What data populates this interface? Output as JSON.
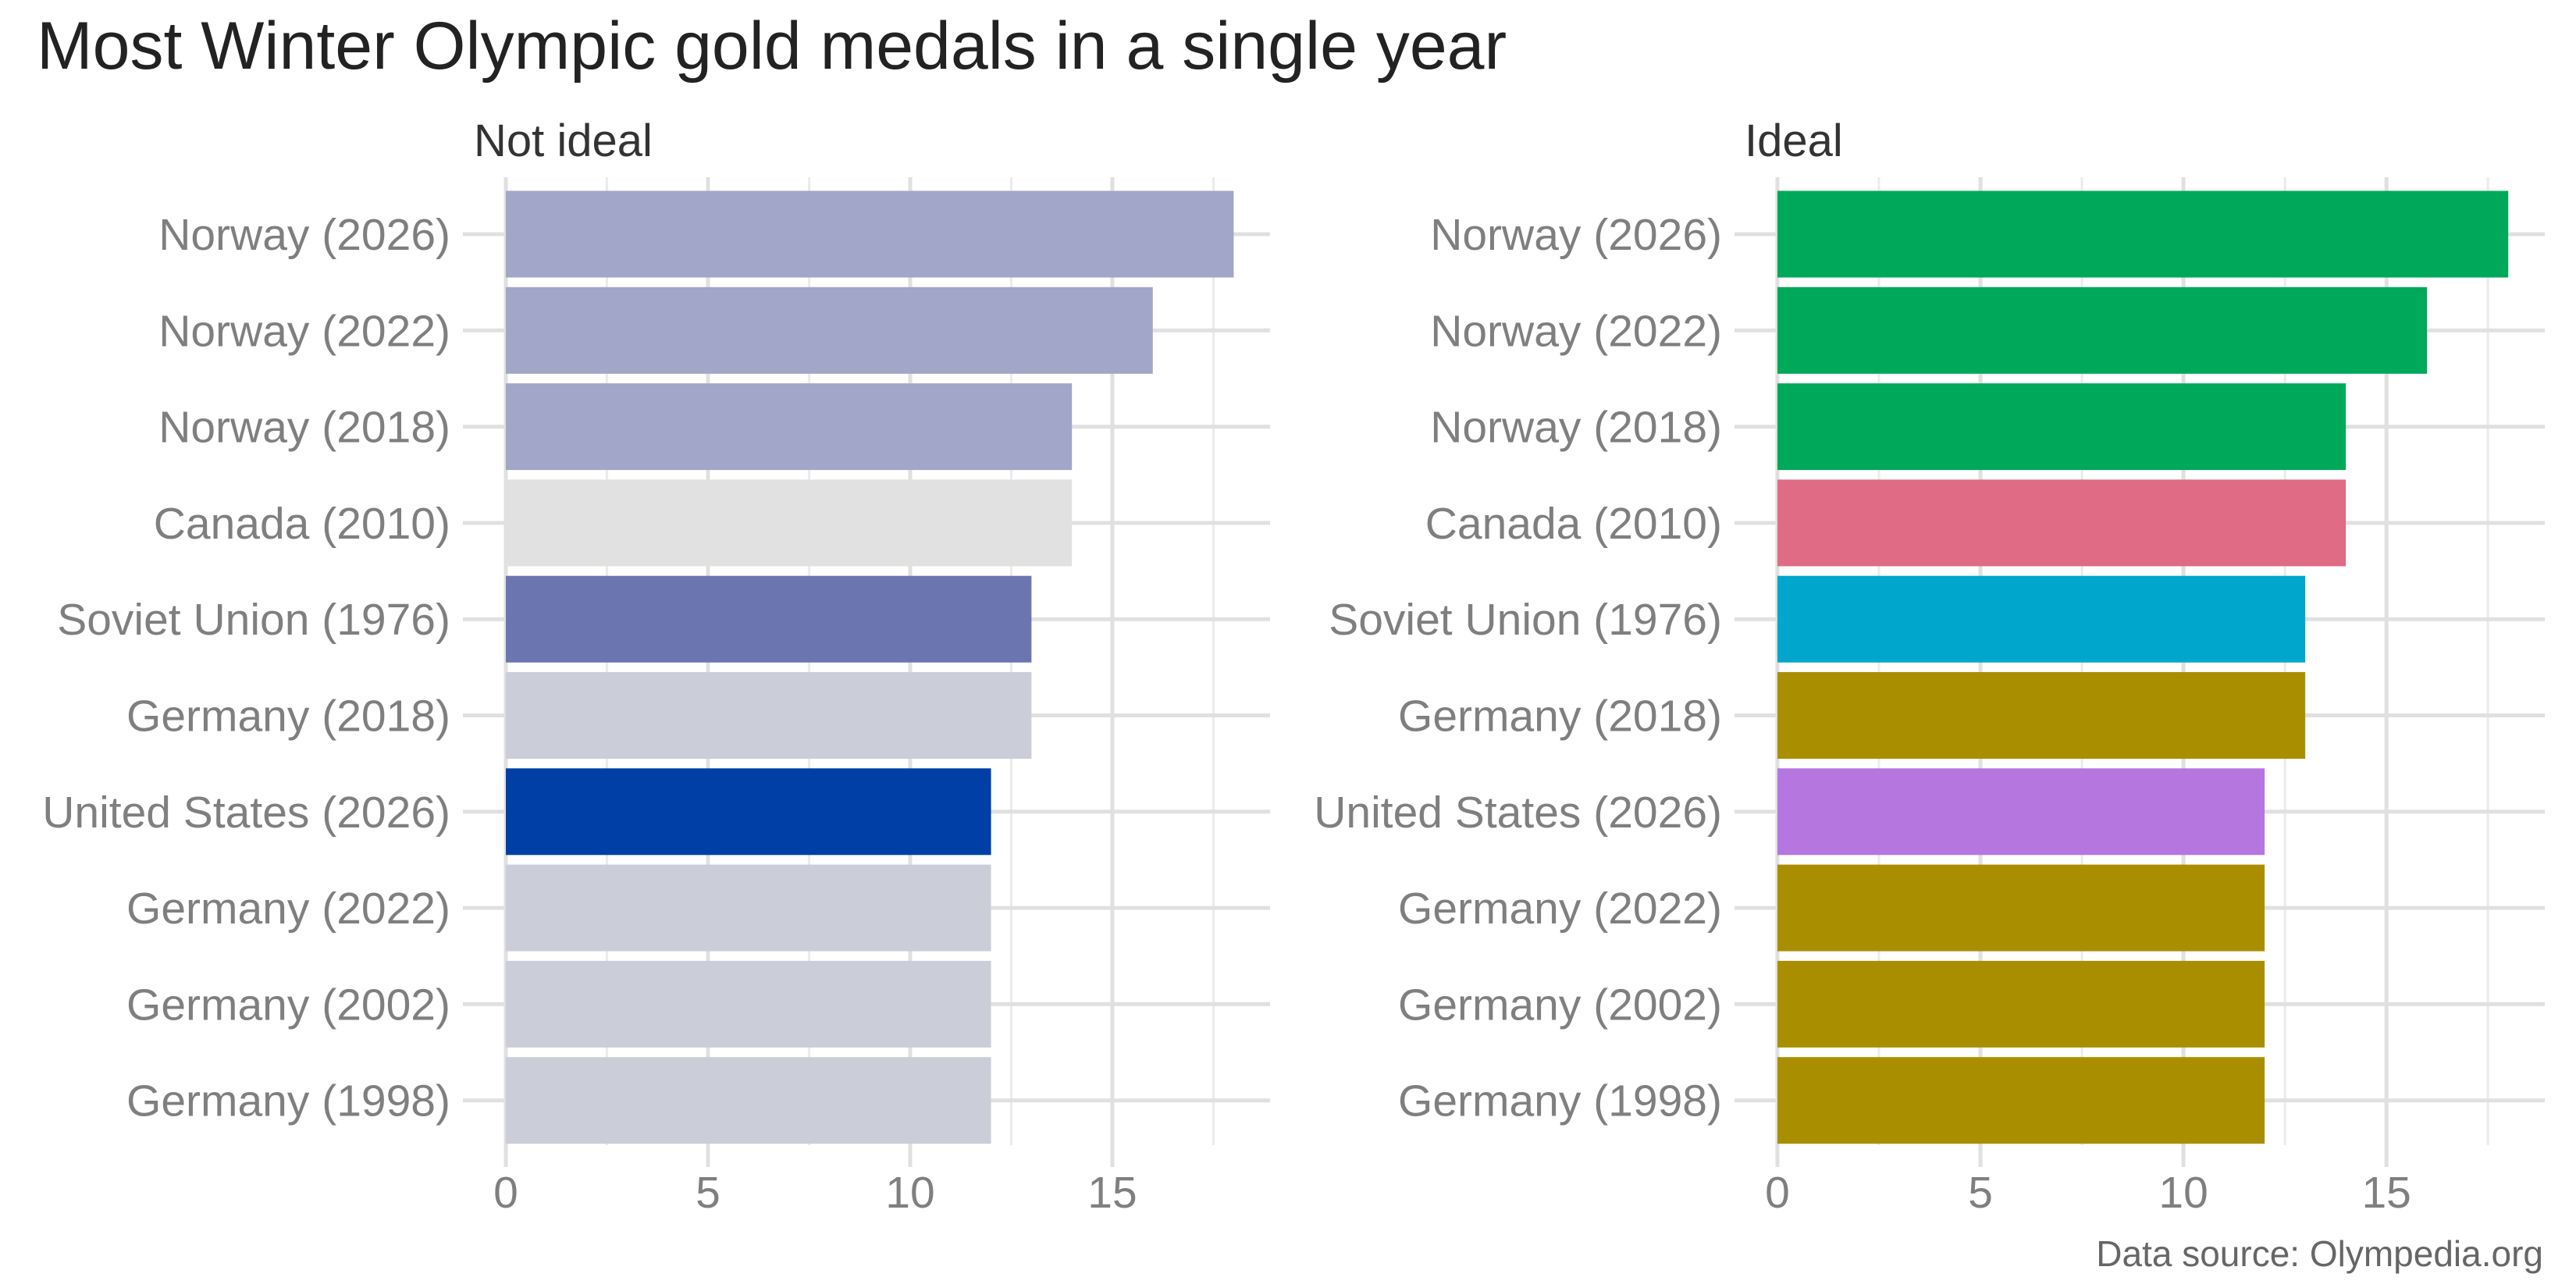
{
  "chart_data": {
    "type": "bar",
    "orientation": "horizontal",
    "title": "Most Winter Olympic gold medals in a single year",
    "caption": "Data source: Olympedia.org",
    "categories": [
      "Norway (2026)",
      "Norway (2022)",
      "Norway (2018)",
      "Canada (2010)",
      "Soviet Union (1976)",
      "Germany (2018)",
      "United States (2026)",
      "Germany (2022)",
      "Germany (2002)",
      "Germany (1998)"
    ],
    "values": [
      18,
      16,
      14,
      14,
      13,
      13,
      12,
      12,
      12,
      12
    ],
    "xlabel": "",
    "ylabel": "",
    "xlim": [
      0,
      18.9
    ],
    "x_ticks": [
      0,
      5,
      10,
      15
    ],
    "x_tick_labels": [
      "0",
      "5",
      "10",
      "15"
    ],
    "grid": true,
    "legend": "none",
    "panels": [
      {
        "subtitle": "Not ideal",
        "colors": [
          "#A2A6C8",
          "#A2A6C8",
          "#A2A6C8",
          "#E1E1E1",
          "#6B76B1",
          "#CBCDD9",
          "#0040A6",
          "#CBCDD9",
          "#CBCDD9",
          "#CBCDD9"
        ]
      },
      {
        "subtitle": "Ideal",
        "colors": [
          "#00A85A",
          "#00A85A",
          "#00A85A",
          "#E06B85",
          "#00A6CC",
          "#A98F00",
          "#B576E0",
          "#A98F00",
          "#A98F00",
          "#A98F00"
        ]
      }
    ]
  }
}
